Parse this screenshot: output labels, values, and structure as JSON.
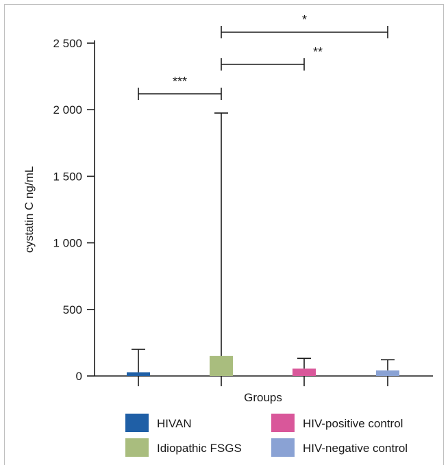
{
  "chart_data": {
    "type": "bar",
    "title": "",
    "xlabel": "Groups",
    "ylabel": "cystatin C ng/mL",
    "ylim": [
      0,
      2500
    ],
    "yticks": [
      0,
      500,
      1000,
      1500,
      2000,
      2500
    ],
    "ytick_labels": [
      "0",
      "500",
      "1 000",
      "1 500",
      "2 000",
      "2 500"
    ],
    "categories": [
      "HIVAN",
      "Idiopathic FSGS",
      "HIV-positive control",
      "HIV-negative control"
    ],
    "values": [
      28,
      150,
      55,
      42
    ],
    "error_upper": [
      200,
      1975,
      132,
      122
    ],
    "colors": [
      "#1f5fa6",
      "#a9bd7e",
      "#d9579a",
      "#8aa2d4"
    ],
    "significance": [
      {
        "from": "HIVAN",
        "to": "Idiopathic FSGS",
        "label": "***"
      },
      {
        "from": "Idiopathic FSGS",
        "to": "HIV-positive control",
        "label": "**"
      },
      {
        "from": "Idiopathic FSGS",
        "to": "HIV-negative control",
        "label": "*"
      }
    ],
    "legend": {
      "placement": "bottom",
      "entries": [
        {
          "label": "HIVAN",
          "color": "#1f5fa6"
        },
        {
          "label": "HIV-positive control",
          "color": "#d9579a"
        },
        {
          "label": "Idiopathic FSGS",
          "color": "#a9bd7e"
        },
        {
          "label": "HIV-negative control",
          "color": "#8aa2d4"
        }
      ]
    }
  }
}
